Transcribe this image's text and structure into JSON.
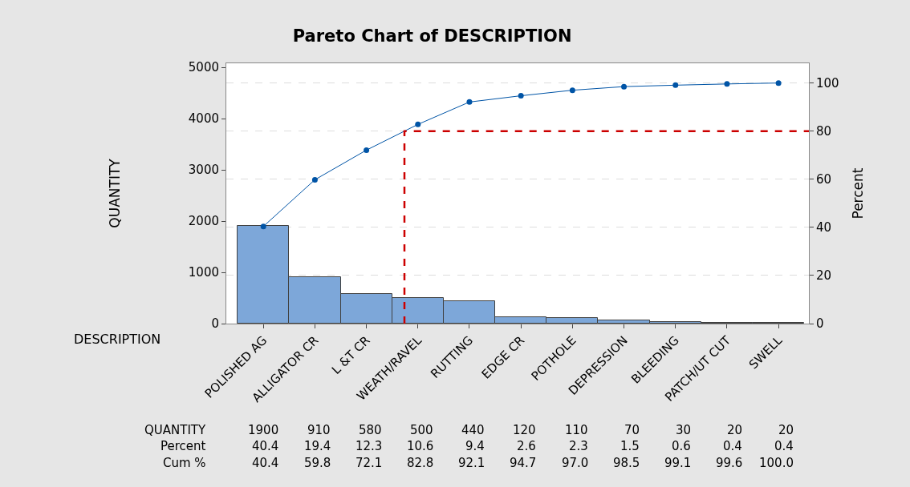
{
  "chart_data": {
    "type": "bar",
    "title": "Pareto Chart of DESCRIPTION",
    "xlabel": "DESCRIPTION",
    "ylabel": "QUANTITY",
    "y2label": "Percent",
    "categories": [
      "POLISHED AG",
      "ALLIGATOR CR",
      "L &T CR",
      "WEATH/RAVEL",
      "RUTTING",
      "EDGE CR",
      "POTHOLE",
      "DEPRESSION",
      "BLEEDING",
      "PATCH/UT CUT",
      "SWELL"
    ],
    "series": [
      {
        "color": "#7da7d9",
        "values": [
          1900,
          910,
          580,
          500,
          440,
          120,
          110,
          70,
          30,
          20,
          20
        ]
      },
      {
        "type": "line",
        "axis": "y2",
        "color": "#0054a6",
        "marker": "circle",
        "values": [
          40.4,
          59.8,
          72.1,
          82.8,
          92.1,
          94.7,
          97.0,
          98.5,
          99.1,
          99.6,
          100.0
        ],
        "value_labels": [
          "40.4",
          "59.8",
          "72.1",
          "82.8",
          "92.1",
          "94.7",
          "97.0",
          "98.5",
          "99.1",
          "99.6",
          "100.0"
        ]
      }
    ],
    "data_labels": true,
    "annotations": [
      "QUANTITY",
      "Cum %",
      "Percent",
      "40.4",
      "19.4",
      "12.3",
      "10.6",
      "9.4",
      "2.6",
      "2.3",
      "1.5",
      "0.6",
      "0.4",
      "0.4"
    ],
    "ylim": [
      0,
      5080
    ],
    "yticks": [
      0,
      1000,
      2000,
      3000,
      4000,
      5000
    ],
    "y2lim": [
      0,
      108.2
    ],
    "y2ticks": [
      0,
      20,
      40,
      60,
      80,
      100
    ],
    "ref_lines": [
      {
        "axis": "y2",
        "value": 80,
        "color": "#cc0000",
        "line_style": "dashed"
      }
    ],
    "grid": true
  }
}
